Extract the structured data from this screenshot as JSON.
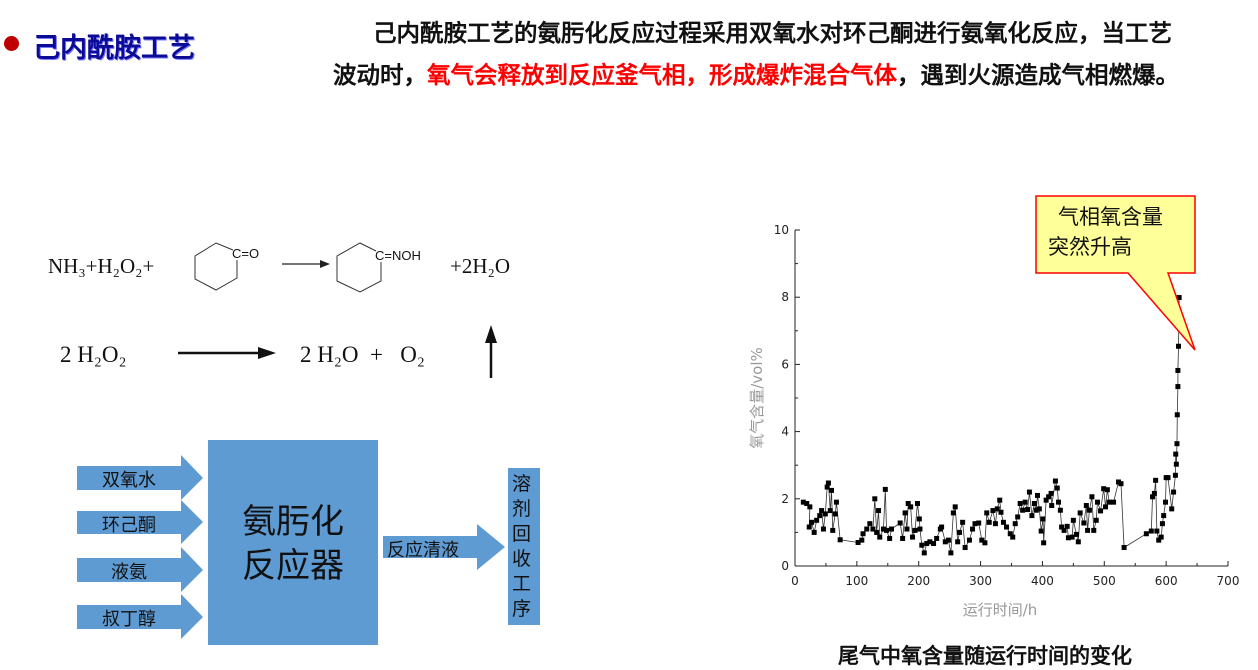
{
  "header": {
    "title": "己内酰胺工艺",
    "bullet_color": "#c00000",
    "title_color": "#0b0b96"
  },
  "intro": {
    "part1": "己内酰胺工艺的氨肟化反应过程采用双氧水对环己酮进行氨氧化反应，当工艺波动时，",
    "part2_red": "氧气会释放到反应釜气相，形成爆炸混合气体",
    "part3": "，遇到火源造成气相燃爆。",
    "highlight_color": "#ff0000"
  },
  "reactions": {
    "r1_reactants": "NH₃+H₂O₂+",
    "r1_ketone_group": "C=O",
    "r1_oxime_group": "C=NOH",
    "r1_products": "+2H₂O",
    "r2_reactant": "2 H₂O₂",
    "r2_products": "2 H₂O  +   O₂"
  },
  "flow": {
    "inputs": [
      "双氧水",
      "环己酮",
      "液氨",
      "叔丁醇"
    ],
    "reactor": [
      "氨肟化",
      "反应器"
    ],
    "output_label": "反应清液",
    "destination": "溶剂回收工序",
    "box_color": "#5f9bd3"
  },
  "chart_data": {
    "type": "line",
    "markers": "square",
    "xlabel": "运行时间/h",
    "ylabel": "氧气含量/vol%",
    "xlim": [
      0,
      700
    ],
    "ylim": [
      0,
      10
    ],
    "xticks": [
      0,
      100,
      200,
      300,
      400,
      500,
      600,
      700
    ],
    "yticks": [
      0,
      2,
      4,
      6,
      8,
      10
    ],
    "grid": false,
    "annotation": [
      "气相氧含量",
      "突然升高"
    ],
    "caption": "尾气中氧含量随运行时间的变化",
    "x": [
      13.5,
      19,
      24,
      23,
      27,
      31,
      35,
      40,
      43,
      46,
      49,
      52,
      54,
      57,
      59,
      61,
      65,
      67,
      73,
      102,
      108,
      110,
      116,
      121,
      126,
      129,
      132,
      135,
      137,
      143,
      146,
      148,
      153,
      156,
      170,
      174,
      178,
      181,
      183,
      187,
      190,
      194,
      198,
      201,
      202,
      205,
      209,
      213,
      218,
      224,
      229,
      235,
      237,
      243,
      248,
      252,
      256,
      259,
      263,
      266,
      271,
      275,
      282,
      287,
      291,
      297,
      302,
      307,
      310,
      314,
      320,
      324,
      327,
      331,
      333,
      337,
      342,
      348,
      352,
      356,
      360,
      364,
      368,
      372,
      376,
      379,
      383,
      387,
      390,
      392,
      395,
      398,
      401,
      402,
      406,
      410,
      414,
      415,
      421,
      424,
      426,
      429,
      431,
      435,
      440,
      442,
      448,
      450,
      455,
      458,
      461,
      467,
      471,
      473,
      476,
      480,
      483,
      487,
      489,
      494,
      499,
      502,
      505,
      508,
      515,
      523,
      527,
      532,
      568,
      576,
      578,
      581,
      583,
      585,
      588,
      592,
      594,
      596,
      599,
      600,
      603,
      609,
      612,
      615,
      615.5,
      616.5,
      617.5,
      618,
      619,
      619,
      620,
      621
    ],
    "y": [
      1.9,
      1.86,
      1.76,
      1.16,
      1.3,
      1.0,
      1.36,
      1.5,
      1.65,
      1.1,
      1.55,
      2.35,
      2.47,
      1.65,
      2.25,
      1.06,
      1.55,
      1.9,
      0.78,
      0.7,
      0.77,
      0.96,
      1.1,
      1.26,
      1.1,
      2.0,
      1.0,
      1.65,
      0.86,
      1.1,
      2.28,
      1.06,
      0.82,
      1.1,
      1.28,
      0.82,
      1.58,
      1.1,
      1.86,
      1.76,
      0.86,
      1.06,
      1.86,
      1.4,
      1.1,
      0.62,
      0.39,
      0.67,
      0.72,
      0.67,
      0.82,
      1.1,
      1.16,
      0.72,
      0.77,
      0.39,
      1.58,
      1.76,
      0.72,
      1.0,
      1.3,
      0.55,
      0.77,
      1.1,
      1.26,
      1.28,
      0.77,
      0.69,
      1.58,
      1.3,
      1.65,
      1.26,
      1.7,
      1.96,
      1.6,
      1.3,
      1.16,
      0.96,
      0.86,
      1.26,
      1.46,
      1.86,
      1.66,
      1.9,
      1.68,
      2.2,
      1.5,
      1.86,
      1.66,
      2.1,
      1.7,
      1.04,
      1.4,
      0.69,
      1.96,
      2.06,
      2.16,
      1.8,
      2.53,
      2.32,
      1.9,
      1.66,
      1.16,
      1.06,
      1.18,
      0.84,
      0.86,
      1.36,
      0.94,
      0.72,
      1.58,
      1.28,
      1.8,
      1.06,
      1.66,
      2.06,
      1.06,
      1.36,
      1.9,
      1.64,
      2.3,
      1.76,
      2.27,
      1.9,
      1.9,
      2.5,
      2.45,
      0.55,
      0.96,
      1.04,
      2.06,
      2.16,
      2.55,
      1.04,
      0.77,
      0.86,
      1.26,
      1.5,
      1.9,
      2.63,
      2.63,
      1.7,
      2.2,
      2.7,
      3.33,
      3.03,
      3.64,
      4.5,
      5.34,
      5.82,
      6.54,
      7.99
    ],
    "annotation_fill": "#ffff99",
    "annotation_border": "#ff0000"
  }
}
